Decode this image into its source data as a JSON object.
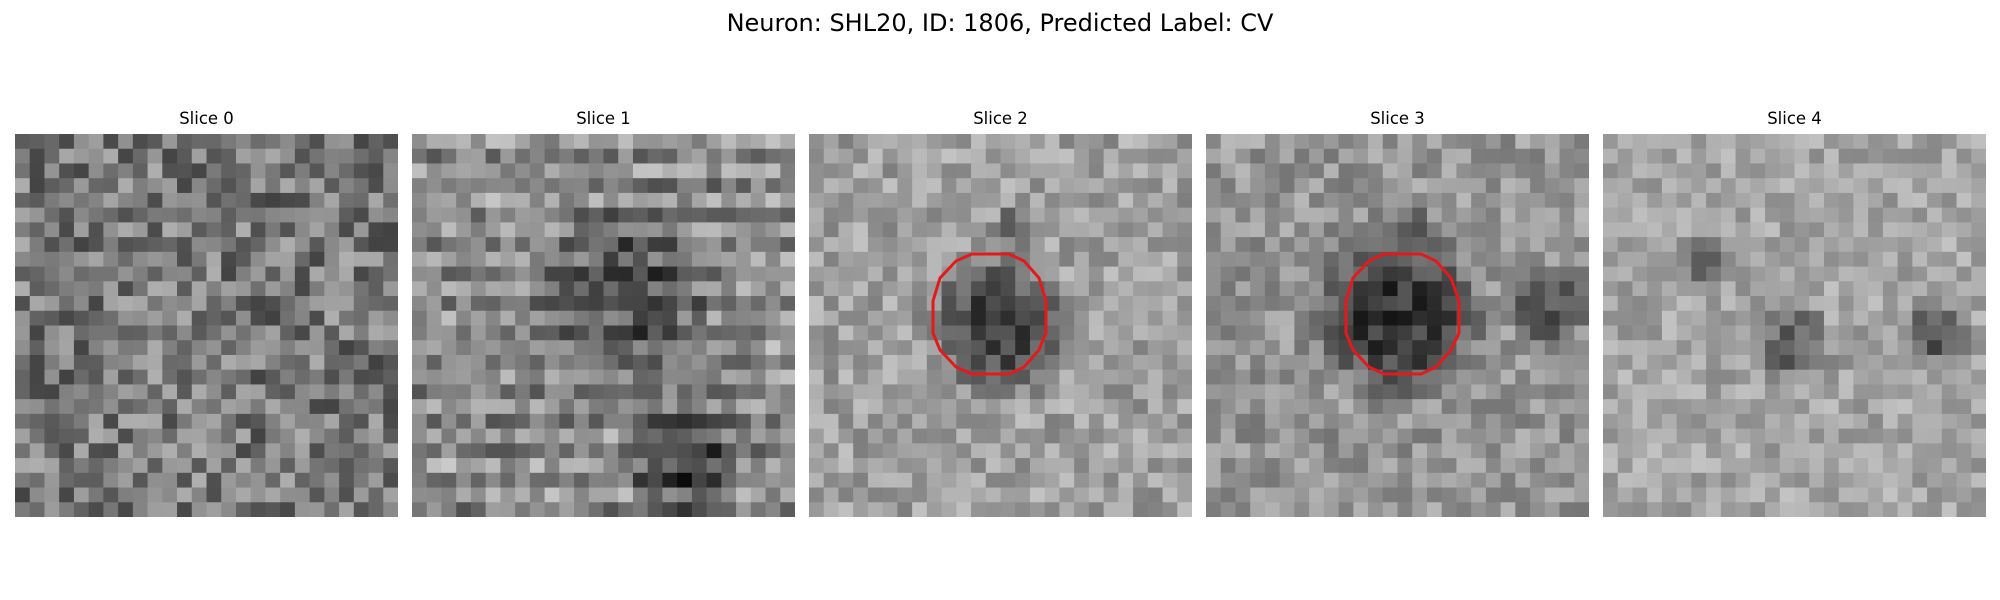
{
  "figure": {
    "title": "Neuron: SHL20, ID: 1806, Predicted Label: CV"
  },
  "outline_color": "#e31a1c",
  "slices": [
    {
      "title": "Slice 0",
      "has_outline": false
    },
    {
      "title": "Slice 1",
      "has_outline": false
    },
    {
      "title": "Slice 2",
      "has_outline": true
    },
    {
      "title": "Slice 3",
      "has_outline": true
    },
    {
      "title": "Slice 4",
      "has_outline": false
    }
  ]
}
